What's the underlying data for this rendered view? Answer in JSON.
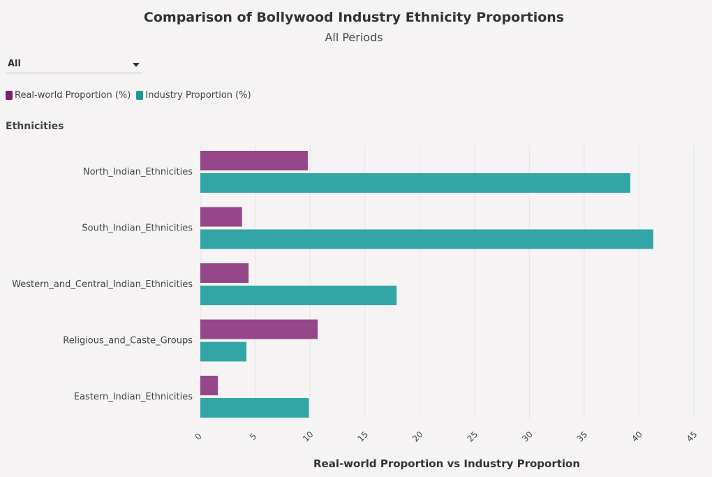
{
  "header": {
    "title": "Comparison of Bollywood Industry Ethnicity Proportions",
    "subtitle": "All Periods"
  },
  "filter": {
    "selected": "All"
  },
  "legend": {
    "items": [
      {
        "label": "Real-world Proportion (%)",
        "color": "#7b1f6e"
      },
      {
        "label": "Industry Proportion (%)",
        "color": "#1a9a97"
      }
    ]
  },
  "chart_data": {
    "type": "bar",
    "orientation": "horizontal",
    "title": "Comparison of Bollywood Industry Ethnicity Proportions",
    "subtitle": "All Periods",
    "ylabel": "Ethnicities",
    "xlabel": "Real-world Proportion vs Industry Proportion",
    "categories": [
      "North_Indian_Ethnicities",
      "South_Indian_Ethnicities",
      "Western_and_Central_Indian_Ethnicities",
      "Religious_and_Caste_Groups",
      "Eastern_Indian_Ethnicities"
    ],
    "series": [
      {
        "name": "Real-world Proportion (%)",
        "color": "#954789",
        "values": [
          9.8,
          3.8,
          4.4,
          10.7,
          1.6
        ]
      },
      {
        "name": "Industry Proportion (%)",
        "color": "#31a6a5",
        "values": [
          39.2,
          41.3,
          17.9,
          4.2,
          9.9
        ]
      }
    ],
    "xlim": [
      0,
      45
    ],
    "xticks": [
      0,
      5,
      10,
      15,
      20,
      25,
      30,
      35,
      40,
      45
    ],
    "grid": true,
    "legend_position": "top-left"
  }
}
